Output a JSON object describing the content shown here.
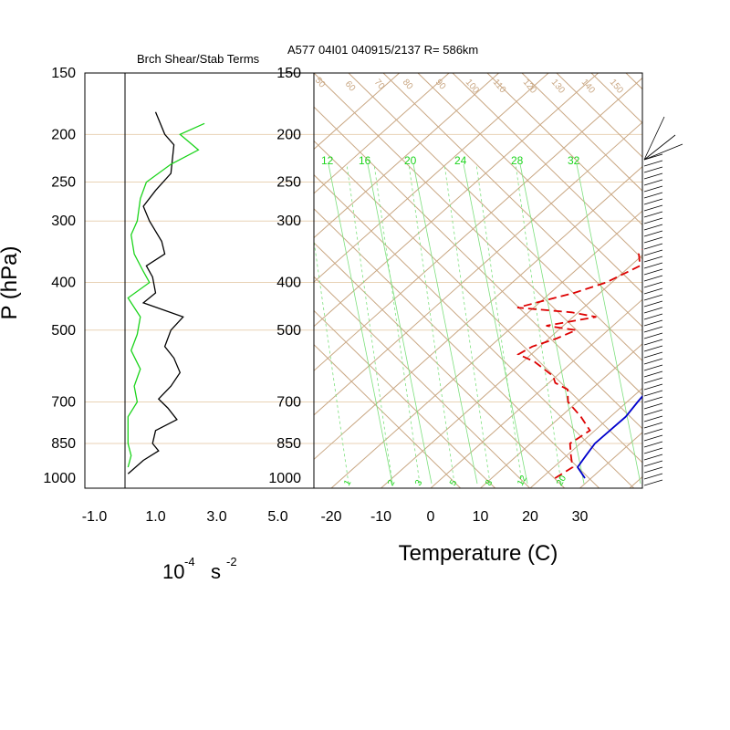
{
  "chart_data": [
    {
      "type": "line",
      "title": "Brch Shear/Stab Terms",
      "xlabel": "10",
      "xlabel_exp": "-4",
      "xlabel_unit": "s",
      "xlabel_unit_exp": "-2",
      "ylabel": "P (hPa)",
      "x_tick_labels": [
        "-1.0",
        "1.0",
        "3.0",
        "5.0"
      ],
      "y_tick_labels": [
        "150",
        "200",
        "250",
        "300",
        "400",
        "500",
        "700",
        "850",
        "1000"
      ],
      "xlim": [
        -1.0,
        5.0
      ],
      "ylim": [
        1000,
        150
      ],
      "y_scale": "log",
      "series": [
        {
          "color": "#000000",
          "points": [
            [
              1.0,
              180
            ],
            [
              1.3,
              200
            ],
            [
              1.6,
              210
            ],
            [
              1.5,
              240
            ],
            [
              1.0,
              260
            ],
            [
              0.6,
              280
            ],
            [
              0.8,
              300
            ],
            [
              1.2,
              330
            ],
            [
              1.3,
              350
            ],
            [
              0.7,
              370
            ],
            [
              0.9,
              390
            ],
            [
              1.0,
              420
            ],
            [
              0.6,
              440
            ],
            [
              1.9,
              470
            ],
            [
              1.5,
              500
            ],
            [
              1.3,
              540
            ],
            [
              1.6,
              570
            ],
            [
              1.8,
              610
            ],
            [
              1.5,
              650
            ],
            [
              1.1,
              690
            ],
            [
              1.4,
              720
            ],
            [
              1.7,
              760
            ],
            [
              1.0,
              800
            ],
            [
              0.9,
              850
            ],
            [
              1.1,
              880
            ],
            [
              0.6,
              920
            ],
            [
              0.1,
              980
            ]
          ]
        },
        {
          "color": "#1cd41c",
          "points": [
            [
              2.6,
              190
            ],
            [
              1.8,
              200
            ],
            [
              2.4,
              215
            ],
            [
              1.5,
              230
            ],
            [
              0.7,
              250
            ],
            [
              0.5,
              270
            ],
            [
              0.4,
              300
            ],
            [
              0.2,
              320
            ],
            [
              0.3,
              350
            ],
            [
              0.6,
              380
            ],
            [
              0.8,
              400
            ],
            [
              0.1,
              430
            ],
            [
              0.5,
              470
            ],
            [
              0.4,
              510
            ],
            [
              0.2,
              550
            ],
            [
              0.5,
              600
            ],
            [
              0.3,
              650
            ],
            [
              0.4,
              700
            ],
            [
              0.1,
              750
            ],
            [
              0.1,
              850
            ],
            [
              0.2,
              900
            ],
            [
              0.1,
              950
            ]
          ]
        }
      ]
    },
    {
      "type": "line",
      "title": "A577 04I01 040915/2137 R= 586km",
      "xlabel": "Temperature (C)",
      "x_tick_labels": [
        "-20",
        "-10",
        "0",
        "10",
        "20",
        "30"
      ],
      "y_tick_labels": [
        "150",
        "200",
        "250",
        "300",
        "400",
        "500",
        "700",
        "850",
        "1000"
      ],
      "xlim": [
        -23,
        42
      ],
      "ylim": [
        1000,
        150
      ],
      "y_scale": "log",
      "theta_labels": [
        "50",
        "60",
        "70",
        "80",
        "90",
        "100",
        "110",
        "120",
        "130",
        "140",
        "150"
      ],
      "mixing_ratio_labels_top": [
        "12",
        "16",
        "20",
        "24",
        "28",
        "32"
      ],
      "mixing_ratio_labels_bottom": [
        "1",
        "2",
        "3",
        "5",
        "8",
        "12",
        "20"
      ],
      "series": [
        {
          "name": "temperature",
          "color": "#0000cc",
          "points": [
            [
              31,
              1000
            ],
            [
              27,
              950
            ],
            [
              26,
              900
            ],
            [
              25,
              850
            ],
            [
              25,
              750
            ],
            [
              24,
              700
            ],
            [
              23,
              650
            ],
            [
              22,
              600
            ],
            [
              21,
              550
            ],
            [
              20,
              500
            ],
            [
              19,
              450
            ],
            [
              16,
              400
            ],
            [
              13,
              350
            ],
            [
              9,
              300
            ],
            [
              5,
              250
            ],
            [
              4,
              220
            ],
            [
              2,
              200
            ],
            [
              0,
              180
            ]
          ]
        },
        {
          "name": "dewpoint",
          "color": "#dd0000",
          "dashed": true,
          "points": [
            [
              25,
              1000
            ],
            [
              26,
              950
            ],
            [
              23,
              900
            ],
            [
              20,
              850
            ],
            [
              21,
              800
            ],
            [
              16,
              750
            ],
            [
              10,
              700
            ],
            [
              7,
              660
            ],
            [
              3,
              640
            ],
            [
              1,
              620
            ],
            [
              -6,
              580
            ],
            [
              -11,
              560
            ],
            [
              -10,
              540
            ],
            [
              -7,
              520
            ],
            [
              -5,
              500
            ],
            [
              -12,
              490
            ],
            [
              -4,
              470
            ],
            [
              -10,
              460
            ],
            [
              -22,
              450
            ],
            [
              -14,
              420
            ],
            [
              -10,
              400
            ],
            [
              -7,
              370
            ],
            [
              -10,
              350
            ],
            [
              -11,
              320
            ],
            [
              -14,
              280
            ],
            [
              -16,
              250
            ],
            [
              -15,
              220
            ],
            [
              -13,
              200
            ]
          ]
        }
      ]
    }
  ]
}
